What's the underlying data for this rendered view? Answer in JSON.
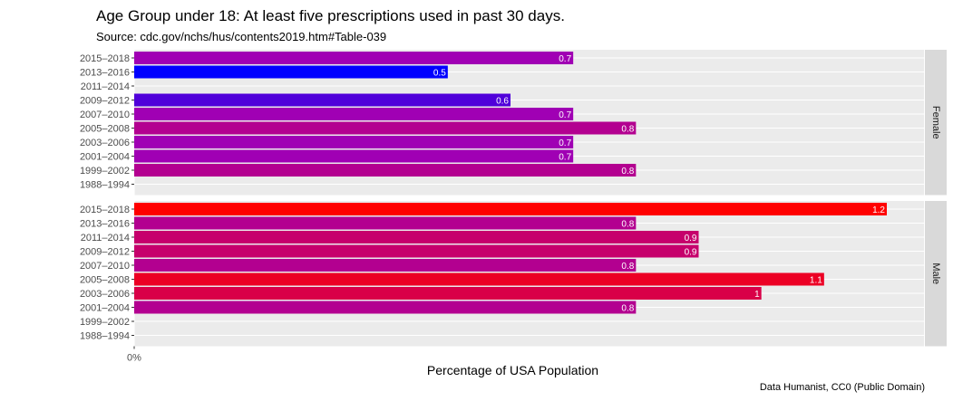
{
  "chart_data": {
    "type": "bar",
    "orientation": "horizontal",
    "title": "Age Group under 18: At least five prescriptions used in past 30 days.",
    "subtitle": "Source: cdc.gov/nchs/hus/contents2019.htm#Table-039",
    "xlabel": "Percentage of USA Population",
    "caption": "Data Humanist, CC0 (Public Domain)",
    "x_tick_labels": [
      "0%"
    ],
    "xlim": [
      0,
      1.2
    ],
    "grid": true,
    "categories": [
      "2015–2018",
      "2013–2016",
      "2011–2014",
      "2009–2012",
      "2007–2010",
      "2005–2008",
      "2003–2006",
      "2001–2004",
      "1999–2002",
      "1988–1994"
    ],
    "panels": [
      {
        "name": "Female",
        "values": [
          0.7,
          0.5,
          null,
          0.6,
          0.7,
          0.8,
          0.7,
          0.7,
          0.8,
          null
        ],
        "labels": [
          "0.7",
          "0.5",
          "",
          "0.6",
          "0.7",
          "0.8",
          "0.7",
          "0.7",
          "0.8",
          ""
        ]
      },
      {
        "name": "Male",
        "values": [
          1.2,
          0.8,
          0.9,
          0.9,
          0.8,
          1.1,
          1.0,
          0.8,
          null,
          null
        ],
        "labels": [
          "1.2",
          "0.8",
          "0.9",
          "0.9",
          "0.8",
          "1.1",
          "1",
          "0.8",
          "",
          ""
        ]
      }
    ],
    "color_scale": {
      "low": "#0000ff",
      "mid": "#a000b4",
      "high": "#ff0000"
    }
  }
}
